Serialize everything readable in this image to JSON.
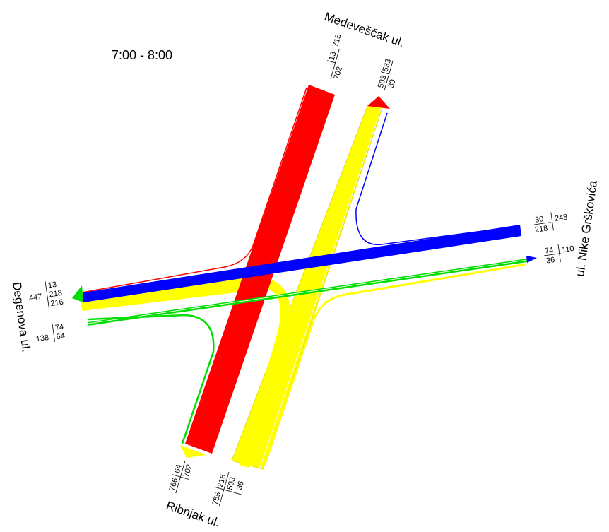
{
  "time_period": "7:00 - 8:00",
  "colors": {
    "red": "#ff0000",
    "yellow": "#ffff00",
    "blue": "#0000ff",
    "green": "#00dd00"
  },
  "streets": {
    "north": "Medeveščak ul.",
    "east": "ul. Nike Grškovića",
    "south": "Ribnjak ul.",
    "west": "Degenova ul."
  },
  "counts": {
    "north": {
      "in_total": "715",
      "in_a": "13",
      "in_b": "702",
      "out_total": "533",
      "out_a": "503",
      "out_b": "30"
    },
    "east": {
      "in_total": "248",
      "in_a": "30",
      "in_b": "218",
      "out_total": "110",
      "out_a": "74",
      "out_b": "36"
    },
    "south": {
      "in_a": "64",
      "in_b": "702",
      "in_total": "766",
      "out_a": "216",
      "out_b": "503",
      "out_c": "36",
      "out_total": "755"
    },
    "west": {
      "in_a": "13",
      "in_b": "218",
      "in_c": "216",
      "in_total": "447",
      "out_a": "74",
      "out_b": "64",
      "out_total": "138"
    }
  }
}
